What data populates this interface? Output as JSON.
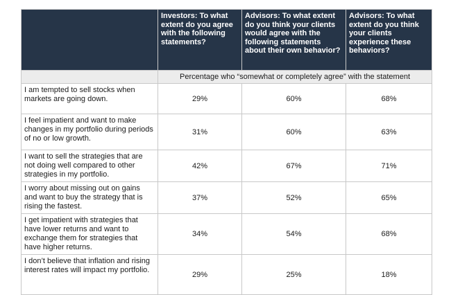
{
  "table": {
    "headers": [
      "",
      "Investors: To what extent do you agree with the following statements?",
      "Advisors: To what extent do you think your clients would agree with the following statements about their own behavior?",
      "Advisors: To what extent do you think your clients experience these behaviors?"
    ],
    "subheader": "Percentage who “somewhat or completely agree” with the statement",
    "rows": [
      {
        "statement": "I am tempted to sell stocks when markets are going down.",
        "investors": "29%",
        "advisors_agree": "60%",
        "advisors_experience": "68%"
      },
      {
        "statement": "I feel impatient and want to make changes in my portfolio during periods of no or low growth.",
        "investors": "31%",
        "advisors_agree": "60%",
        "advisors_experience": "63%"
      },
      {
        "statement": "I want to sell the strategies that are not doing well compared to other strategies in my portfolio.",
        "investors": "42%",
        "advisors_agree": "67%",
        "advisors_experience": "71%"
      },
      {
        "statement": "I worry about missing out on gains and want to buy the strategy that is rising the fastest.",
        "investors": "37%",
        "advisors_agree": "52%",
        "advisors_experience": "65%"
      },
      {
        "statement": "I get impatient with strategies that have lower returns and want to exchange them for strategies that have higher returns.",
        "investors": "34%",
        "advisors_agree": "54%",
        "advisors_experience": "68%"
      },
      {
        "statement": "I don’t believe that inflation and rising interest rates will impact my portfolio.",
        "investors": "29%",
        "advisors_agree": "25%",
        "advisors_experience": "18%"
      }
    ]
  },
  "colors": {
    "header_bg": "#263548",
    "header_text": "#ffffff",
    "subheader_bg": "#ececec",
    "border": "#c8c8c8"
  }
}
